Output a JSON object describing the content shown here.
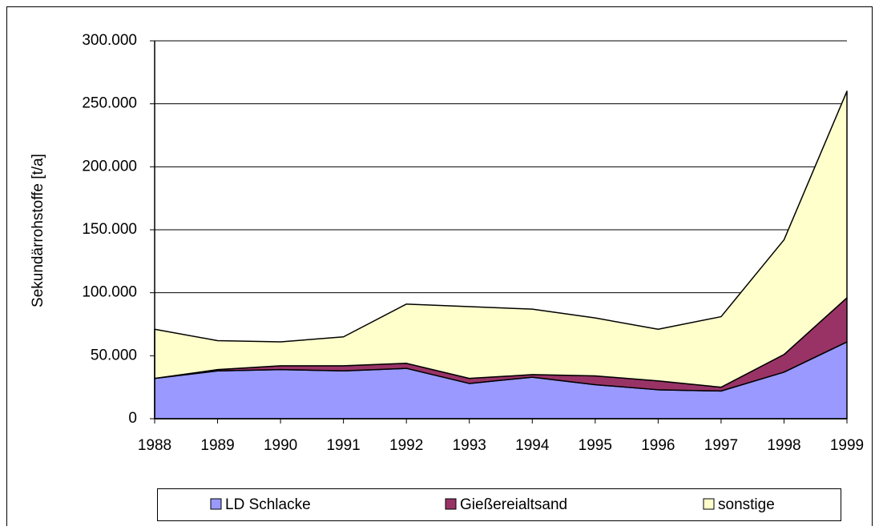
{
  "chart_data": {
    "type": "stacked_area",
    "y_label": "Sekundärrohstoffe [t/a]",
    "categories": [
      "1988",
      "1989",
      "1990",
      "1991",
      "1992",
      "1993",
      "1994",
      "1995",
      "1996",
      "1997",
      "1998",
      "1999"
    ],
    "series": [
      {
        "name": "LD Schlacke",
        "color": "#9999ff",
        "values": [
          32000,
          38000,
          39000,
          38000,
          40000,
          28000,
          33000,
          27000,
          23000,
          22000,
          37000,
          61000
        ]
      },
      {
        "name": "Gießereialtsand",
        "color": "#993366",
        "values": [
          0,
          1000,
          3000,
          4000,
          4000,
          4000,
          2000,
          7000,
          7000,
          3000,
          14000,
          35000
        ]
      },
      {
        "name": "sonstige",
        "color": "#ffffcc",
        "values": [
          39000,
          23000,
          19000,
          23000,
          47000,
          57000,
          52000,
          46000,
          41000,
          56000,
          91000,
          164000
        ]
      }
    ],
    "ylim": [
      0,
      300000
    ],
    "yticks": [
      0,
      {
        "value": 50000,
        "label": "50.000"
      },
      {
        "value": 100000,
        "label": "100.000"
      },
      {
        "value": 150000,
        "label": "150.000"
      },
      {
        "value": 200000,
        "label": "200.000"
      },
      {
        "value": 250000,
        "label": "250.000"
      },
      {
        "value": 300000,
        "label": "300.000"
      }
    ],
    "grid": true,
    "legend": "bottom"
  }
}
